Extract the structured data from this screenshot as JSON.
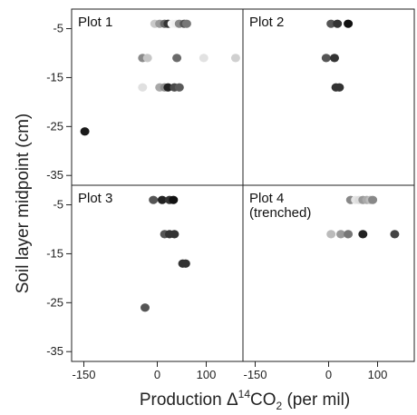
{
  "chart_data": {
    "type": "scatter",
    "xlabel_parts": [
      "Production Δ",
      "14",
      "CO",
      "2",
      " (per mil)"
    ],
    "ylabel": "Soil layer midpoint (cm)",
    "xlim": [
      -175,
      175
    ],
    "ylim": [
      -37,
      -1
    ],
    "x_ticks": [
      -150,
      0,
      100
    ],
    "x_tick_labels": [
      "-150",
      "0",
      "100"
    ],
    "y_ticks": [
      -5,
      -15,
      -25,
      -35
    ],
    "y_tick_labels": [
      "-5",
      "-15",
      "-25",
      "-35"
    ],
    "grid": false,
    "colors": {
      "frame": "#222222",
      "background": "#ffffff"
    },
    "panels": [
      {
        "label_lines": [
          "Plot 1"
        ],
        "points": [
          {
            "x": -5,
            "y": -4,
            "color": "#c9c9c9"
          },
          {
            "x": 5,
            "y": -4,
            "color": "#9a9a9a"
          },
          {
            "x": 15,
            "y": -4,
            "color": "#666666"
          },
          {
            "x": 22,
            "y": -4,
            "color": "#333333"
          },
          {
            "x": 30,
            "y": -4,
            "color": "#f4f4f4"
          },
          {
            "x": 38,
            "y": -4,
            "color": "#eeeeee"
          },
          {
            "x": 45,
            "y": -4,
            "color": "#888888"
          },
          {
            "x": 55,
            "y": -4,
            "color": "#555555"
          },
          {
            "x": 60,
            "y": -4,
            "color": "#777777"
          },
          {
            "x": -30,
            "y": -11,
            "color": "#8a8a8a"
          },
          {
            "x": -20,
            "y": -11,
            "color": "#c6c6c6"
          },
          {
            "x": 40,
            "y": -11,
            "color": "#6a6a6a"
          },
          {
            "x": 95,
            "y": -11,
            "color": "#e2e2e2"
          },
          {
            "x": 160,
            "y": -11,
            "color": "#d0d0d0"
          },
          {
            "x": -30,
            "y": -17,
            "color": "#e0e0e0"
          },
          {
            "x": 5,
            "y": -17,
            "color": "#a8a8a8"
          },
          {
            "x": 15,
            "y": -17,
            "color": "#8e8e8e"
          },
          {
            "x": 22,
            "y": -17,
            "color": "#222222"
          },
          {
            "x": 35,
            "y": -17,
            "color": "#4a4a4a"
          },
          {
            "x": 45,
            "y": -17,
            "color": "#5a5a5a"
          },
          {
            "x": -148,
            "y": -26,
            "color": "#1a1a1a"
          }
        ]
      },
      {
        "label_lines": [
          "Plot 2"
        ],
        "points": [
          {
            "x": 5,
            "y": -4,
            "color": "#555555"
          },
          {
            "x": 18,
            "y": -4,
            "color": "#333333"
          },
          {
            "x": 40,
            "y": -4,
            "color": "#111111"
          },
          {
            "x": -5,
            "y": -11,
            "color": "#555555"
          },
          {
            "x": 12,
            "y": -11,
            "color": "#333333"
          },
          {
            "x": 15,
            "y": -17,
            "color": "#333333"
          },
          {
            "x": 22,
            "y": -17,
            "color": "#333333"
          }
        ]
      },
      {
        "label_lines": [
          "Plot 3"
        ],
        "points": [
          {
            "x": -8,
            "y": -4,
            "color": "#555555"
          },
          {
            "x": 10,
            "y": -4,
            "color": "#222222"
          },
          {
            "x": 25,
            "y": -4,
            "color": "#333333"
          },
          {
            "x": 33,
            "y": -4,
            "color": "#111111"
          },
          {
            "x": 15,
            "y": -11,
            "color": "#555555"
          },
          {
            "x": 25,
            "y": -11,
            "color": "#333333"
          },
          {
            "x": 35,
            "y": -11,
            "color": "#333333"
          },
          {
            "x": 52,
            "y": -17,
            "color": "#333333"
          },
          {
            "x": 58,
            "y": -17,
            "color": "#333333"
          },
          {
            "x": -25,
            "y": -26,
            "color": "#555555"
          }
        ]
      },
      {
        "label_lines": [
          "Plot 4",
          "(trenched)"
        ],
        "points": [
          {
            "x": 45,
            "y": -4,
            "color": "#888888"
          },
          {
            "x": 55,
            "y": -4,
            "color": "#e6e6e6"
          },
          {
            "x": 62,
            "y": -4,
            "color": "#dddddd"
          },
          {
            "x": 70,
            "y": -4,
            "color": "#999999"
          },
          {
            "x": 78,
            "y": -4,
            "color": "#aaaaaa"
          },
          {
            "x": 85,
            "y": -4,
            "color": "#bbbbbb"
          },
          {
            "x": 90,
            "y": -4,
            "color": "#888888"
          },
          {
            "x": 5,
            "y": -11,
            "color": "#bbbbbb"
          },
          {
            "x": 25,
            "y": -11,
            "color": "#999999"
          },
          {
            "x": 40,
            "y": -11,
            "color": "#777777"
          },
          {
            "x": 70,
            "y": -11,
            "color": "#222222"
          },
          {
            "x": 135,
            "y": -11,
            "color": "#444444"
          }
        ]
      }
    ]
  }
}
